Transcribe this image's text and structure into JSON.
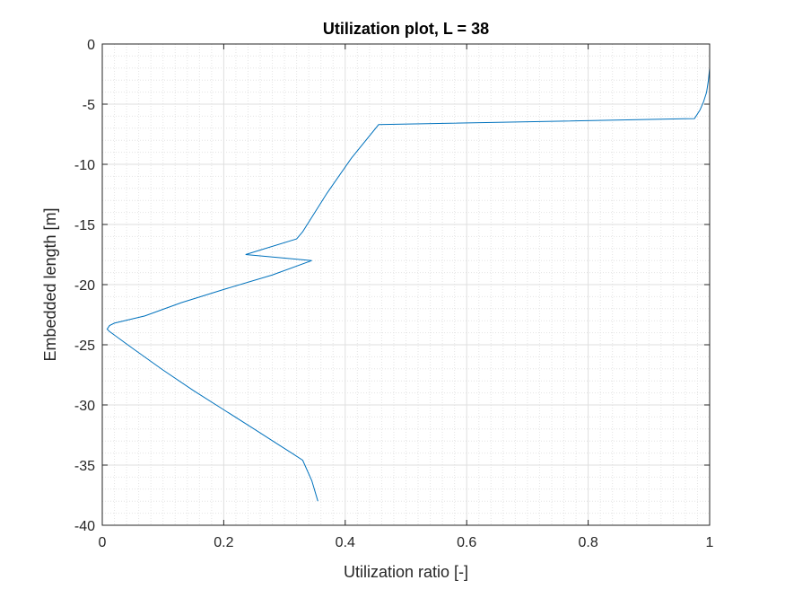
{
  "chart_data": {
    "type": "line",
    "title": "Utilization plot, L = 38",
    "xlabel": "Utilization ratio [-]",
    "ylabel": "Embedded length [m]",
    "xlim": [
      0,
      1
    ],
    "ylim": [
      -40,
      0
    ],
    "xticks": [
      0,
      0.2,
      0.4,
      0.6,
      0.8,
      1
    ],
    "xtick_labels": [
      "0",
      "0.2",
      "0.4",
      "0.6",
      "0.8",
      "1"
    ],
    "yticks": [
      0,
      -5,
      -10,
      -15,
      -20,
      -25,
      -30,
      -35,
      -40
    ],
    "ytick_labels": [
      "0",
      "-5",
      "-10",
      "-15",
      "-20",
      "-25",
      "-30",
      "-35",
      "-40"
    ],
    "grid": "on",
    "minor_grid": "on",
    "line_color": "#0072BD",
    "series": [
      {
        "x": [
          1.0,
          1.0,
          0.998,
          0.995,
          0.99,
          0.984,
          0.975,
          0.455,
          0.41,
          0.37,
          0.33,
          0.32,
          0.236,
          0.345,
          0.28,
          0.2,
          0.13,
          0.07,
          0.02,
          0.012,
          0.008,
          0.012,
          0.05,
          0.1,
          0.15,
          0.2,
          0.25,
          0.29,
          0.315,
          0.33,
          0.345,
          0.355
        ],
        "y": [
          0.0,
          -2.0,
          -3.0,
          -4.0,
          -4.8,
          -5.5,
          -6.2,
          -6.7,
          -9.5,
          -12.4,
          -15.6,
          -16.2,
          -17.5,
          -18.0,
          -19.2,
          -20.4,
          -21.5,
          -22.6,
          -23.2,
          -23.4,
          -23.7,
          -23.9,
          -25.3,
          -27.1,
          -28.8,
          -30.4,
          -32.0,
          -33.3,
          -34.1,
          -34.6,
          -36.3,
          -38.0
        ]
      }
    ]
  }
}
